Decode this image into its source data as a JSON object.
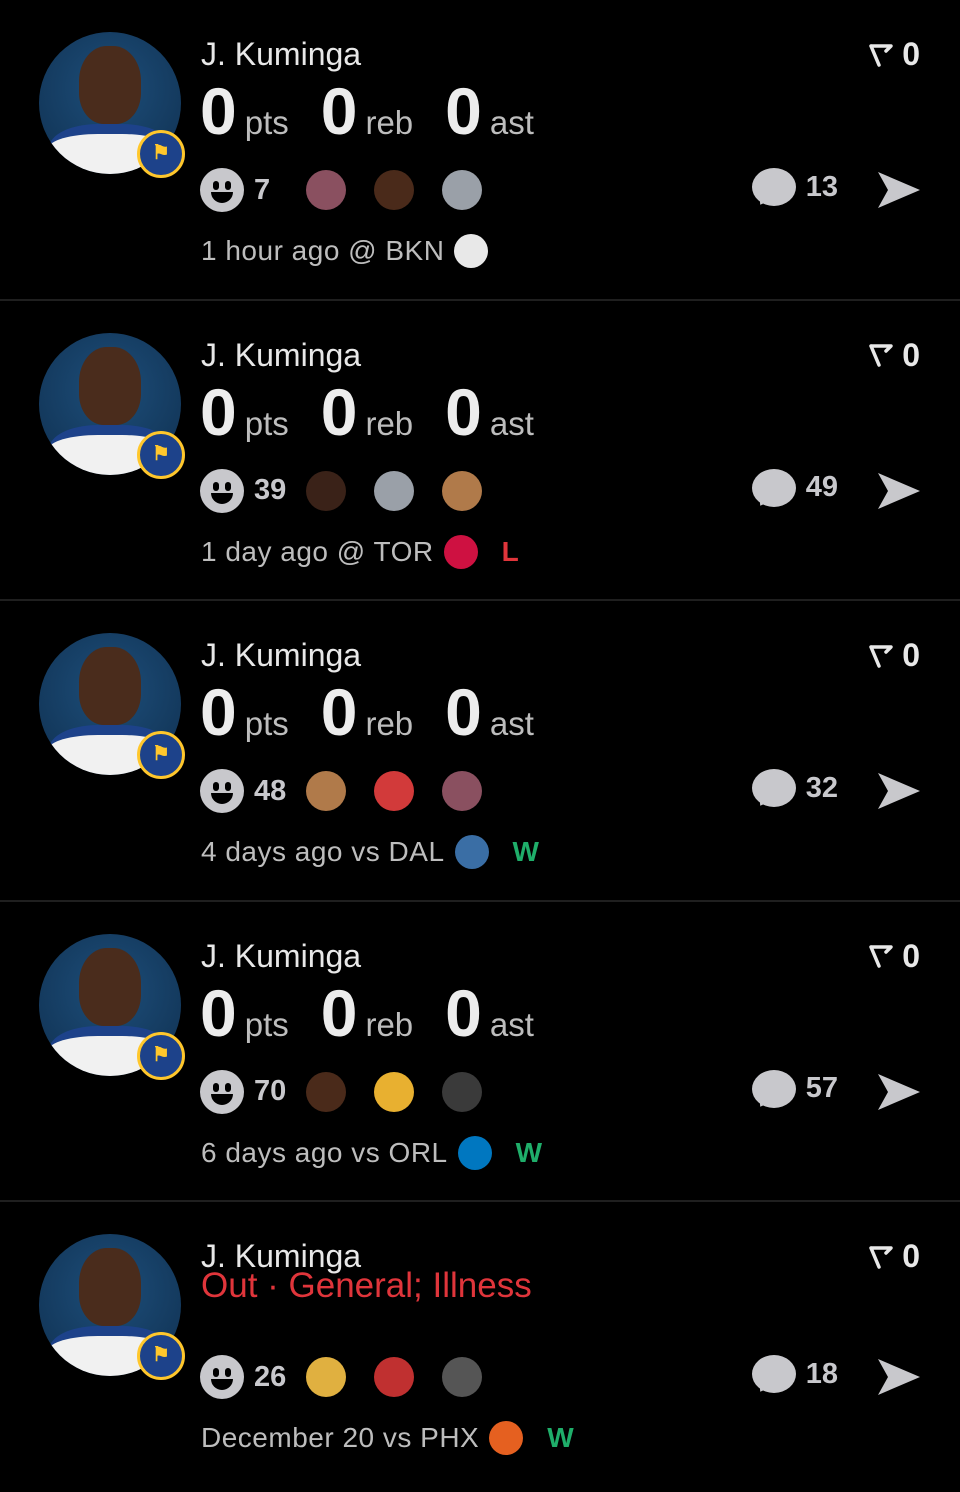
{
  "colors": {
    "background": "#000000",
    "win": "#1fae6a",
    "loss": "#e0353b",
    "out": "#e0353b",
    "muted": "#c8c8cc"
  },
  "units": {
    "pts": "pts",
    "reb": "reb",
    "ast": "ast"
  },
  "posts": [
    {
      "player": "J. Kuminga",
      "flag_count": "0",
      "pts": "0",
      "reb": "0",
      "ast": "0",
      "reaction_count": "7",
      "reaction_emojis": [
        "moai-lady",
        "face-in-hands",
        "goat"
      ],
      "comment_count": "13",
      "footer": "1 hour ago @ BKN",
      "opponent_logo": "nets-logo",
      "result": ""
    },
    {
      "player": "J. Kuminga",
      "flag_count": "0",
      "pts": "0",
      "reb": "0",
      "ast": "0",
      "reaction_count": "39",
      "reaction_emojis": [
        "crying-face",
        "goat",
        "cookie"
      ],
      "comment_count": "49",
      "footer": "1 day ago @ TOR",
      "opponent_logo": "raptors-logo",
      "result": "L"
    },
    {
      "player": "J. Kuminga",
      "flag_count": "0",
      "pts": "0",
      "reb": "0",
      "ast": "0",
      "reaction_count": "48",
      "reaction_emojis": [
        "cookie",
        "santa",
        "moai-lady"
      ],
      "comment_count": "32",
      "footer": "4 days ago vs DAL",
      "opponent_logo": "mavericks-logo",
      "result": "W"
    },
    {
      "player": "J. Kuminga",
      "flag_count": "0",
      "pts": "0",
      "reb": "0",
      "ast": "0",
      "reaction_count": "70",
      "reaction_emojis": [
        "face-in-hands",
        "thinking-face",
        "man-at-desk"
      ],
      "comment_count": "57",
      "footer": "6 days ago vs ORL",
      "opponent_logo": "magic-logo",
      "result": "W"
    },
    {
      "player": "J. Kuminga",
      "flag_count": "0",
      "status": "Out · General; Illness",
      "reaction_count": "26",
      "reaction_emojis": [
        "rolling-laughing",
        "croatia-flag",
        "man-portrait"
      ],
      "comment_count": "18",
      "footer": "December 20 vs PHX",
      "opponent_logo": "suns-logo",
      "result": "W"
    }
  ]
}
